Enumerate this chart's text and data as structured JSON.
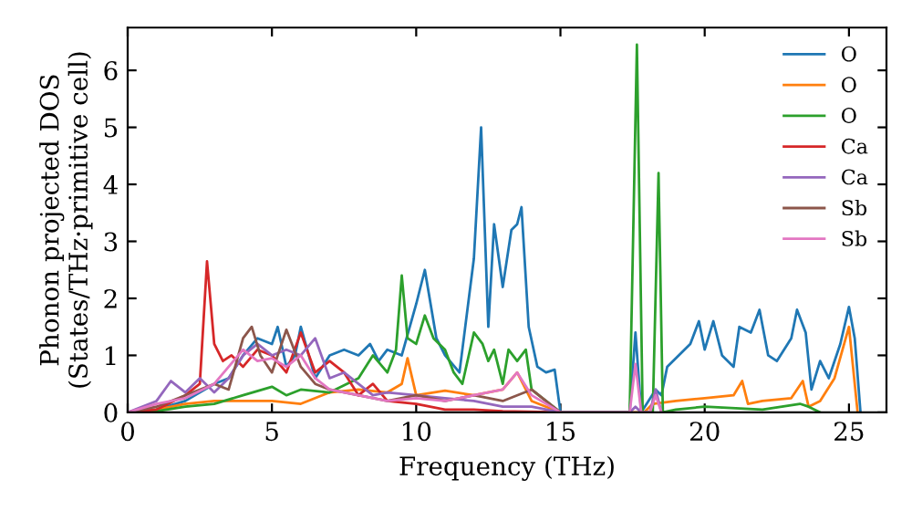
{
  "chart_data": {
    "type": "line",
    "xlabel": "Frequency (THz)",
    "ylabel": "Phonon projected DOS\n(States/THz·primitive cell)",
    "xlim": [
      0,
      26.3
    ],
    "ylim": [
      0,
      6.75
    ],
    "xticks": [
      0,
      5,
      10,
      15,
      20,
      25
    ],
    "yticks": [
      0,
      1,
      2,
      3,
      4,
      5,
      6
    ],
    "grid": false,
    "legend": "top right",
    "marker": "none",
    "line_style": "solid",
    "series": [
      {
        "name": "O",
        "color": "#1f77b4",
        "x": [
          0,
          1,
          2,
          3,
          3.5,
          4,
          4.5,
          5,
          5.2,
          5.5,
          5.8,
          6,
          6.5,
          7,
          7.5,
          8,
          8.4,
          8.7,
          9,
          9.5,
          10,
          10.3,
          10.7,
          11,
          11.5,
          12,
          12.25,
          12.5,
          12.7,
          13,
          13.3,
          13.5,
          13.65,
          13.9,
          14.2,
          14.5,
          14.8,
          15,
          17.4,
          17.6,
          17.8,
          18.3,
          18.5,
          18.7,
          19.5,
          19.8,
          20,
          20.3,
          20.6,
          21,
          21.2,
          21.6,
          21.9,
          22.2,
          22.5,
          23,
          23.2,
          23.5,
          23.7,
          24,
          24.3,
          24.7,
          25,
          25.2,
          25.4
        ],
        "values": [
          0,
          0.05,
          0.2,
          0.5,
          0.6,
          1.0,
          1.3,
          1.2,
          1.5,
          0.8,
          1.0,
          1.5,
          0.6,
          1.0,
          1.1,
          1.0,
          1.2,
          0.9,
          1.1,
          1.0,
          1.9,
          2.5,
          1.3,
          1.0,
          0.7,
          2.7,
          5.0,
          1.5,
          3.3,
          2.2,
          3.2,
          3.3,
          3.6,
          1.5,
          0.8,
          0.7,
          0.75,
          0,
          0,
          1.4,
          0,
          0.4,
          0.3,
          0.8,
          1.2,
          1.6,
          1.1,
          1.6,
          1.0,
          0.8,
          1.5,
          1.4,
          1.8,
          1.0,
          0.9,
          1.3,
          1.8,
          1.4,
          0.4,
          0.9,
          0.6,
          1.2,
          1.85,
          1.3,
          0
        ]
      },
      {
        "name": "O",
        "color": "#ff7f0e",
        "x": [
          0,
          1,
          2,
          3,
          4,
          5,
          6,
          7,
          8,
          9,
          9.5,
          9.7,
          10,
          11,
          12,
          13,
          13.5,
          14,
          15,
          17.9,
          18.2,
          19,
          20,
          21,
          21.3,
          21.5,
          22,
          23,
          23.4,
          23.6,
          24,
          24.5,
          25,
          25.3
        ],
        "values": [
          0,
          0.05,
          0.15,
          0.2,
          0.2,
          0.2,
          0.15,
          0.35,
          0.4,
          0.35,
          0.5,
          0.95,
          0.3,
          0.38,
          0.3,
          0.4,
          0.7,
          0.2,
          0,
          0,
          0.15,
          0.2,
          0.25,
          0.3,
          0.55,
          0.15,
          0.2,
          0.25,
          0.55,
          0.1,
          0.2,
          0.6,
          1.5,
          0
        ]
      },
      {
        "name": "O",
        "color": "#2ca02c",
        "x": [
          0,
          1,
          2,
          3,
          4,
          5,
          5.5,
          6,
          7,
          8,
          8.5,
          9,
          9.3,
          9.5,
          9.7,
          10,
          10.3,
          10.6,
          11,
          11.3,
          11.6,
          12,
          12.3,
          12.5,
          12.7,
          13,
          13.2,
          13.5,
          13.8,
          14,
          14.5,
          15,
          17.4,
          17.65,
          17.85,
          18.2,
          18.4,
          18.55,
          19,
          20,
          22,
          23.3,
          23.6,
          24
        ],
        "values": [
          0,
          0.02,
          0.1,
          0.15,
          0.3,
          0.45,
          0.3,
          0.4,
          0.35,
          0.6,
          1.0,
          0.7,
          1.1,
          2.4,
          1.3,
          1.2,
          1.7,
          1.3,
          1.1,
          0.7,
          0.5,
          1.4,
          1.2,
          0.9,
          1.1,
          0.5,
          1.1,
          0.9,
          1.1,
          0.4,
          0.2,
          0,
          0,
          6.45,
          0,
          0,
          4.2,
          0,
          0.05,
          0.1,
          0.05,
          0.15,
          0.1,
          0
        ]
      },
      {
        "name": "Ca",
        "color": "#d62728",
        "x": [
          0,
          1,
          2,
          2.5,
          2.75,
          3,
          3.3,
          3.6,
          4,
          4.5,
          5,
          5.5,
          6,
          6.5,
          7,
          7.5,
          8,
          8.5,
          9,
          10,
          11,
          12,
          13,
          15
        ],
        "values": [
          0,
          0.05,
          0.3,
          0.5,
          2.65,
          1.2,
          0.9,
          1.0,
          0.8,
          1.1,
          1.0,
          0.7,
          1.4,
          0.7,
          0.9,
          0.7,
          0.3,
          0.5,
          0.2,
          0.15,
          0.05,
          0.05,
          0.02,
          0
        ]
      },
      {
        "name": "Ca",
        "color": "#9467bd",
        "x": [
          0,
          1,
          1.5,
          2,
          2.5,
          3,
          3.5,
          4,
          4.5,
          5,
          5.5,
          6,
          6.5,
          7,
          7.5,
          8,
          8.5,
          9,
          10,
          11,
          12,
          13,
          14,
          15,
          17.4,
          17.6,
          17.8,
          18.1,
          18.3,
          18.5
        ],
        "values": [
          0,
          0.2,
          0.55,
          0.35,
          0.6,
          0.35,
          0.6,
          1.0,
          1.2,
          1.0,
          1.1,
          1.0,
          1.3,
          0.6,
          0.7,
          0.5,
          0.3,
          0.35,
          0.3,
          0.25,
          0.2,
          0.1,
          0.1,
          0,
          0,
          0.1,
          0,
          0,
          0.4,
          0
        ]
      },
      {
        "name": "Sb",
        "color": "#8c564b",
        "x": [
          0,
          1,
          2,
          3,
          3.5,
          4,
          4.3,
          4.6,
          5,
          5.5,
          6,
          6.5,
          7,
          8,
          9,
          10,
          11,
          12,
          13,
          14,
          14.5,
          15
        ],
        "values": [
          0,
          0.1,
          0.3,
          0.5,
          0.4,
          1.3,
          1.5,
          1.0,
          0.7,
          1.45,
          0.8,
          0.5,
          0.4,
          0.3,
          0.2,
          0.3,
          0.2,
          0.3,
          0.2,
          0.4,
          0.2,
          0
        ]
      },
      {
        "name": "Sb",
        "color": "#e377c2",
        "x": [
          0,
          1,
          2,
          3,
          4,
          4.5,
          5,
          5.5,
          6,
          6.5,
          7,
          8,
          9,
          10,
          11,
          12,
          13,
          13.5,
          14,
          15,
          17.4,
          17.6,
          17.8,
          18.1,
          18.3,
          18.5
        ],
        "values": [
          0,
          0.15,
          0.25,
          0.5,
          1.1,
          0.9,
          0.95,
          0.8,
          1.0,
          0.6,
          0.4,
          0.3,
          0.2,
          0.25,
          0.2,
          0.3,
          0.4,
          0.7,
          0.3,
          0,
          0,
          0.85,
          0,
          0,
          0.3,
          0
        ]
      }
    ]
  }
}
